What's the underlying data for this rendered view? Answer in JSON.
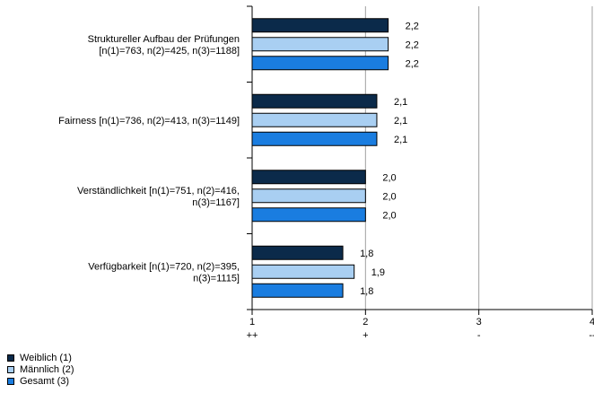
{
  "chart_data": {
    "type": "bar",
    "orientation": "horizontal",
    "categories": [
      [
        "Struktureller Aufbau der Prüfungen",
        "[n(1)=763, n(2)=425, n(3)=1188]"
      ],
      [
        "Fairness [n(1)=736, n(2)=413, n(3)=1149]"
      ],
      [
        "Verständlichkeit [n(1)=751, n(2)=416,",
        "n(3)=1167]"
      ],
      [
        "Verfügbarkeit [n(1)=720, n(2)=395,",
        "n(3)=1115]"
      ]
    ],
    "series": [
      {
        "name": "Weiblich (1)",
        "color": "#0b2a4a",
        "values": [
          2.2,
          2.1,
          2.0,
          1.8
        ],
        "labels": [
          "2,2",
          "2,1",
          "2,0",
          "1,8"
        ]
      },
      {
        "name": "Männlich (2)",
        "color": "#a9cff2",
        "values": [
          2.2,
          2.1,
          2.0,
          1.9
        ],
        "labels": [
          "2,2",
          "2,1",
          "2,0",
          "1,9"
        ]
      },
      {
        "name": "Gesamt (3)",
        "color": "#1a7de0",
        "values": [
          2.2,
          2.1,
          2.0,
          1.8
        ],
        "labels": [
          "2,2",
          "2,1",
          "2,0",
          "1,8"
        ]
      }
    ],
    "xlim": [
      1,
      4
    ],
    "xticks": [
      {
        "value": 1,
        "label": "1",
        "sublabel": "++"
      },
      {
        "value": 2,
        "label": "2",
        "sublabel": "+"
      },
      {
        "value": 3,
        "label": "3",
        "sublabel": "-"
      },
      {
        "value": 4,
        "label": "4",
        "sublabel": "--"
      }
    ],
    "grid": true,
    "legend_position": "bottom-left"
  }
}
